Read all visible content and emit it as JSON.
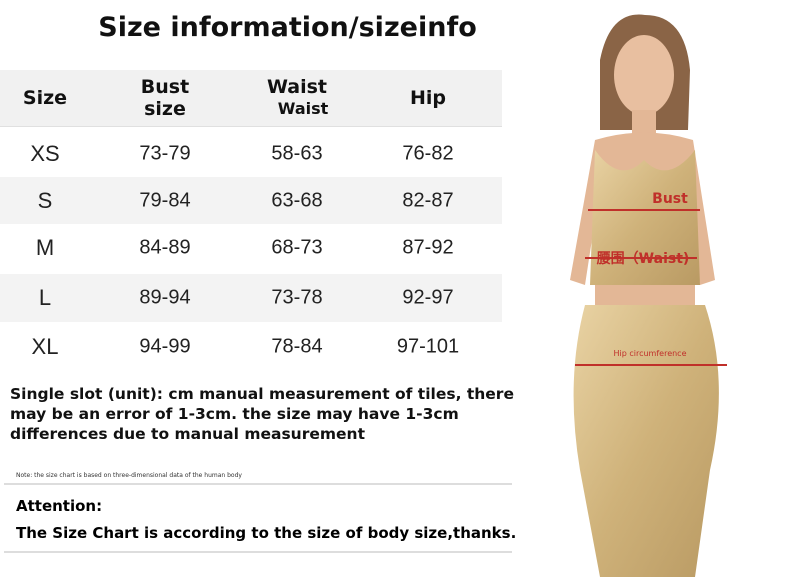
{
  "title": "Size information/sizeinfo",
  "table": {
    "header": [
      [
        "Size"
      ],
      [
        "Bust",
        "size"
      ],
      [
        "Waist",
        "Waist"
      ],
      [
        "Hip"
      ]
    ],
    "rows": [
      [
        "XS",
        "73-79",
        "58-63",
        "76-82"
      ],
      [
        "S",
        "79-84",
        "63-68",
        "82-87"
      ],
      [
        "M",
        "84-89",
        "68-73",
        "87-92"
      ],
      [
        "L",
        "89-94",
        "73-78",
        "92-97"
      ],
      [
        "XL",
        "94-99",
        "78-84",
        "97-101"
      ]
    ]
  },
  "note": [
    "Single slot (unit): cm manual measurement of tiles, there",
    "may be an error of 1-3cm. the size may have 1-3cm",
    "differences due to manual measurement"
  ],
  "small_note": "Note: the size chart is based on three-dimensional data of the human body",
  "attention": {
    "title": "Attention:",
    "text": "The Size Chart is according to the size of body size,thanks."
  },
  "figure_labels": {
    "bust": "Bust",
    "waist": "腰围（Waist)",
    "hip": "Hip circumference"
  }
}
